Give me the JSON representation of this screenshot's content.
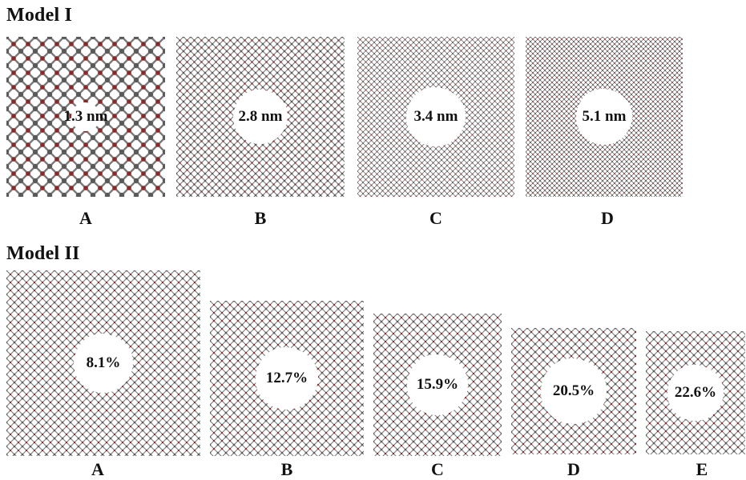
{
  "model1": {
    "title": "Model I",
    "panels": [
      {
        "id": "A",
        "label": "A",
        "pore_label": "1.3 nm",
        "pore_fraction": 0.18
      },
      {
        "id": "B",
        "label": "B",
        "pore_label": "2.8 nm",
        "pore_fraction": 0.34
      },
      {
        "id": "C",
        "label": "C",
        "pore_label": "3.4 nm",
        "pore_fraction": 0.38
      },
      {
        "id": "D",
        "label": "D",
        "pore_label": "5.1 nm",
        "pore_fraction": 0.36
      }
    ]
  },
  "model2": {
    "title": "Model II",
    "panels": [
      {
        "id": "A",
        "label": "A",
        "pore_label": "8.1%",
        "pore_fraction": 0.32
      },
      {
        "id": "B",
        "label": "B",
        "pore_label": "12.7%",
        "pore_fraction": 0.41
      },
      {
        "id": "C",
        "label": "C",
        "pore_label": "15.9%",
        "pore_fraction": 0.48
      },
      {
        "id": "D",
        "label": "D",
        "pore_label": "20.5%",
        "pore_fraction": 0.52
      },
      {
        "id": "E",
        "label": "E",
        "pore_label": "22.6%",
        "pore_fraction": 0.56
      }
    ]
  },
  "colors": {
    "carbon_atom": "#5a5a5a",
    "bond": "#7a7a7a",
    "edge_atom": "#8b2a2a",
    "background": "#ffffff"
  }
}
